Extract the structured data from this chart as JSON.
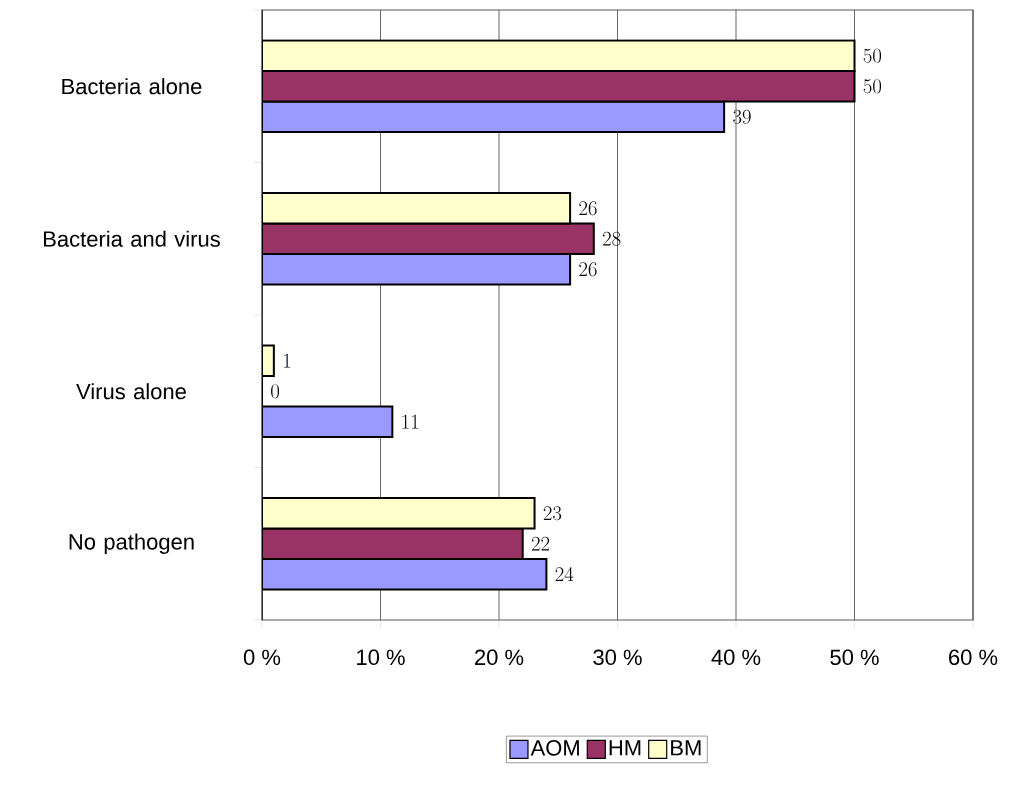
{
  "chart_data": {
    "type": "bar",
    "orientation": "horizontal",
    "categories": [
      "Bacteria alone",
      "Bacteria and virus",
      "Virus alone",
      "No pathogen"
    ],
    "series": [
      {
        "name": "AOM",
        "color": "#9999ff",
        "values": [
          39,
          26,
          11,
          24
        ]
      },
      {
        "name": "HM",
        "color": "#993366",
        "values": [
          50,
          28,
          0,
          22
        ]
      },
      {
        "name": "BM",
        "color": "#ffffcc",
        "values": [
          50,
          26,
          1,
          23
        ]
      }
    ],
    "xlim": [
      0,
      60
    ],
    "xticks": [
      {
        "value": 0,
        "label": "0 %"
      },
      {
        "value": 10,
        "label": "10 %"
      },
      {
        "value": 20,
        "label": "20 %"
      },
      {
        "value": 30,
        "label": "30 %"
      },
      {
        "value": 40,
        "label": "40 %"
      },
      {
        "value": 50,
        "label": "50 %"
      },
      {
        "value": 60,
        "label": "60 %"
      }
    ],
    "grid": "x",
    "legend": "bottom",
    "data_labels": true
  }
}
